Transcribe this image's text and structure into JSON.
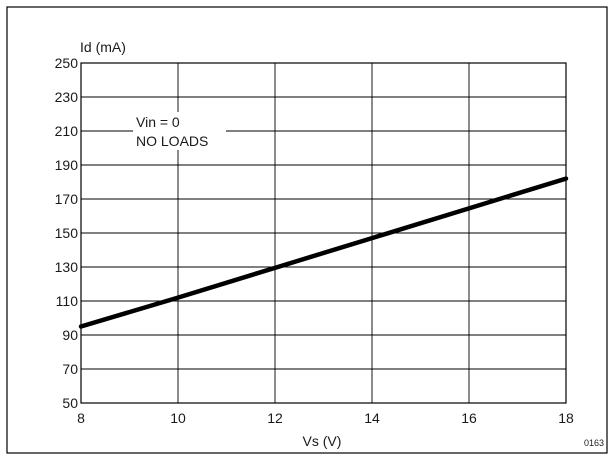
{
  "chart_data": {
    "type": "line",
    "ylabel": "Id (mA)",
    "xlabel": "Vs (V)",
    "xlim": [
      8,
      18
    ],
    "ylim": [
      50,
      250
    ],
    "x_ticks": [
      8,
      10,
      12,
      14,
      16,
      18
    ],
    "y_ticks": [
      50,
      70,
      90,
      110,
      130,
      150,
      170,
      190,
      210,
      230,
      250
    ],
    "grid": true,
    "annotations": [
      "Vin = 0",
      "NO LOADS"
    ],
    "figure_code": "0163",
    "series": [
      {
        "x": [
          8,
          10,
          12,
          14,
          16,
          18
        ],
        "y": [
          95,
          112,
          129.5,
          147,
          164.5,
          182
        ]
      }
    ],
    "colors": {
      "line": "#000000",
      "grid": "#000000",
      "frame": "#000000"
    }
  }
}
